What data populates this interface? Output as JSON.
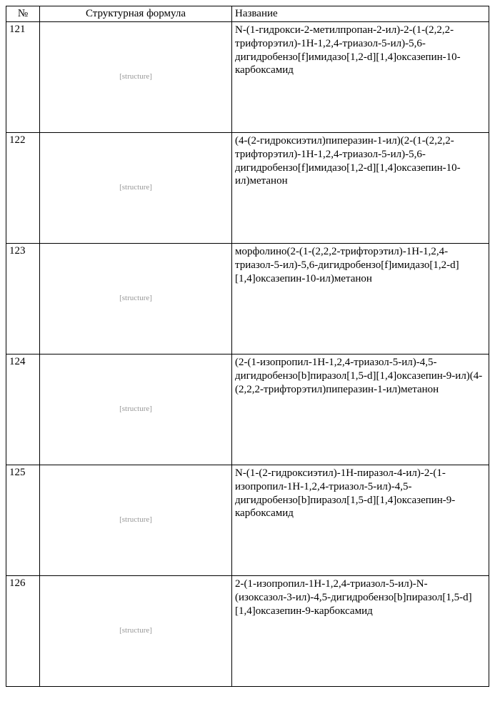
{
  "headers": {
    "num": "№",
    "struct": "Структурная формула",
    "name": "Название"
  },
  "rows": [
    {
      "num": "121",
      "struct_label": "[structure]",
      "name": "N-(1-гидрокси-2-метилпропан-2-ил)-2-(1-(2,2,2-трифторэтил)-1H-1,2,4-триазол-5-ил)-5,6-дигидробензо[f]имидазо[1,2-d][1,4]оксазепин-10-карбоксамид"
    },
    {
      "num": "122",
      "struct_label": "[structure]",
      "name": "(4-(2-гидроксиэтил)пиперазин-1-ил)(2-(1-(2,2,2-трифторэтил)-1H-1,2,4-триазол-5-ил)-5,6-дигидробензо[f]имидазо[1,2-d][1,4]оксазепин-10-ил)метанон"
    },
    {
      "num": "123",
      "struct_label": "[structure]",
      "name": "морфолино(2-(1-(2,2,2-трифторэтил)-1H-1,2,4-триазол-5-ил)-5,6-дигидробензо[f]имидазо[1,2-d][1,4]оксазепин-10-ил)метанон"
    },
    {
      "num": "124",
      "struct_label": "[structure]",
      "name": "(2-(1-изопропил-1H-1,2,4-триазол-5-ил)-4,5-дигидробензо[b]пиразол[1,5-d][1,4]оксазепин-9-ил)(4-(2,2,2-трифторэтил)пиперазин-1-ил)метанон"
    },
    {
      "num": "125",
      "struct_label": "[structure]",
      "name": "N-(1-(2-гидроксиэтил)-1H-пиразол-4-ил)-2-(1-изопропил-1H-1,2,4-триазол-5-ил)-4,5-дигидробензо[b]пиразол[1,5-d][1,4]оксазепин-9-карбоксамид"
    },
    {
      "num": "126",
      "struct_label": "[structure]",
      "name": "2-(1-изопропил-1H-1,2,4-триазол-5-ил)-N-(изоксазол-3-ил)-4,5-дигидробензо[b]пиразол[1,5-d][1,4]оксазепин-9-карбоксамид"
    }
  ]
}
